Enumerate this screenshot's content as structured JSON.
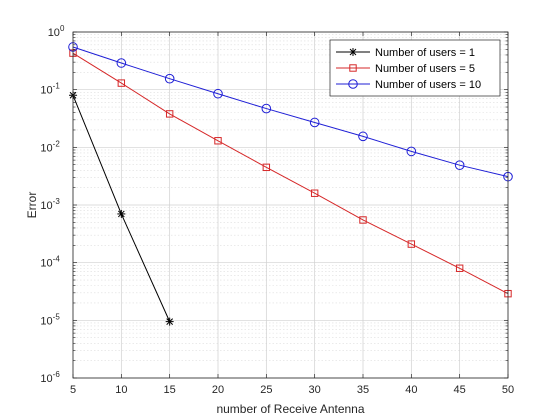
{
  "chart_data": {
    "type": "line",
    "xlabel": "number of Receive Antenna",
    "ylabel": "Error",
    "xlim": [
      5,
      50
    ],
    "ylim": [
      1e-06,
      1
    ],
    "yscale": "log",
    "xticks": [
      5,
      10,
      15,
      20,
      25,
      30,
      35,
      40,
      45,
      50
    ],
    "yticks": [
      {
        "value": 1,
        "base": "10",
        "exp": "0"
      },
      {
        "value": 0.1,
        "base": "10",
        "exp": "-1"
      },
      {
        "value": 0.01,
        "base": "10",
        "exp": "-2"
      },
      {
        "value": 0.001,
        "base": "10",
        "exp": "-3"
      },
      {
        "value": 0.0001,
        "base": "10",
        "exp": "-4"
      },
      {
        "value": 1e-05,
        "base": "10",
        "exp": "-5"
      },
      {
        "value": 1e-06,
        "base": "10",
        "exp": "-6"
      }
    ],
    "grid": true,
    "minor_grid": true,
    "legend_position": "top-right",
    "series": [
      {
        "name": "Number of users = 1",
        "color": "#000000",
        "marker": "asterisk",
        "x": [
          5,
          10,
          15
        ],
        "y": [
          0.08,
          0.0007,
          9.5e-06
        ]
      },
      {
        "name": "Number of users = 5",
        "color": "#d62728",
        "marker": "square",
        "x": [
          5,
          10,
          15,
          20,
          25,
          30,
          35,
          40,
          45,
          50
        ],
        "y": [
          0.43,
          0.13,
          0.038,
          0.013,
          0.0045,
          0.0016,
          0.00055,
          0.00021,
          8e-05,
          2.9e-05
        ]
      },
      {
        "name": "Number of users = 10",
        "color": "#1f1fd6",
        "marker": "circle",
        "x": [
          5,
          10,
          15,
          20,
          25,
          30,
          35,
          40,
          45,
          50
        ],
        "y": [
          0.55,
          0.29,
          0.155,
          0.085,
          0.047,
          0.027,
          0.0155,
          0.0085,
          0.0049,
          0.0031
        ]
      }
    ]
  }
}
